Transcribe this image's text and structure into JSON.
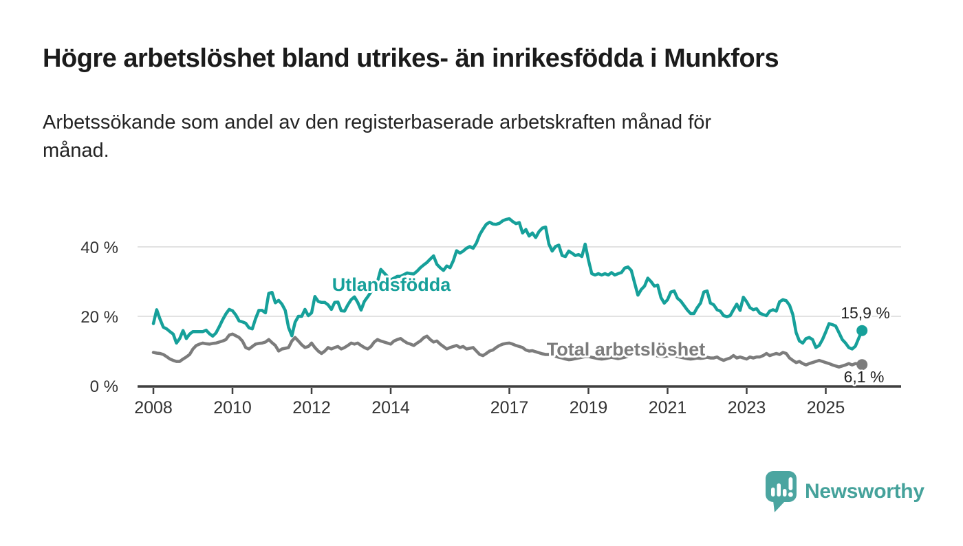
{
  "title": "Högre arbetslöshet bland utrikes- än inrikesfödda i Munkfors",
  "subtitle": "Arbetssökande som andel av den registerbaserade arbetskraften månad för\nmånad.",
  "branding": {
    "name": "Newsworthy",
    "icon": "speech-bubble-bar-chart",
    "color": "#45a29b"
  },
  "colors": {
    "foreign_born_line": "#16a09a",
    "total_line": "#7c7c7c",
    "axis": "#3f3f3f",
    "gridline": "#d9d9d9",
    "label_text": "#222222"
  },
  "chart_data": {
    "type": "line",
    "unit": "%",
    "frequency": "monthly",
    "x_start": "2008-01",
    "x_end": "2025-12",
    "ylim": [
      0,
      50
    ],
    "grid": "horizontal-only",
    "x_tick_labels": [
      "2008",
      "2010",
      "2012",
      "2014",
      "2017",
      "2019",
      "2021",
      "2023",
      "2025"
    ],
    "y_ticks": [
      {
        "value": 0,
        "label": "0 %"
      },
      {
        "value": 20,
        "label": "20 %"
      },
      {
        "value": 40,
        "label": "40 %"
      }
    ],
    "series": [
      {
        "name": "Utlandsfödda",
        "color": "#16a09a",
        "end_label": "15,9 %",
        "last_value": 15.9,
        "values": [
          17.9,
          21.9,
          19.2,
          16.9,
          16.4,
          15.6,
          14.9,
          12.3,
          13.6,
          15.9,
          13.6,
          14.9,
          15.6,
          15.6,
          15.6,
          15.6,
          16.0,
          15.0,
          14.3,
          15.2,
          17.0,
          19.0,
          20.7,
          22.0,
          21.6,
          20.4,
          18.7,
          18.4,
          18.0,
          16.7,
          16.4,
          19.3,
          21.7,
          21.7,
          21.0,
          26.6,
          26.9,
          23.9,
          24.6,
          23.5,
          21.7,
          16.8,
          14.4,
          18.3,
          20.0,
          20.0,
          22.0,
          20.2,
          21.0,
          25.7,
          24.3,
          24.0,
          24.0,
          23.3,
          22.0,
          24.0,
          24.1,
          21.6,
          21.5,
          23.3,
          24.8,
          25.6,
          24.0,
          21.8,
          24.3,
          25.6,
          27.0,
          28.5,
          30.0,
          33.5,
          32.5,
          31.5,
          30.5,
          31.0,
          31.5,
          31.5,
          32.0,
          32.5,
          32.3,
          32.2,
          33.0,
          34.0,
          34.8,
          35.5,
          36.5,
          37.4,
          35.0,
          34.0,
          33.2,
          34.5,
          34.0,
          36.0,
          38.9,
          38.2,
          38.8,
          39.6,
          40.1,
          39.6,
          41.1,
          43.5,
          45.1,
          46.5,
          47.1,
          46.6,
          46.5,
          46.8,
          47.5,
          47.9,
          48.1,
          47.3,
          46.7,
          47.0,
          44.0,
          45.0,
          43.1,
          44.0,
          42.7,
          44.4,
          45.4,
          45.7,
          40.8,
          38.8,
          40.1,
          40.5,
          37.5,
          37.2,
          38.8,
          38.2,
          37.5,
          37.8,
          37.2,
          40.8,
          36.2,
          32.3,
          31.9,
          32.3,
          31.9,
          32.3,
          31.9,
          32.6,
          31.9,
          32.3,
          32.6,
          33.9,
          34.2,
          33.2,
          29.6,
          26.1,
          27.7,
          28.7,
          31.0,
          30.0,
          28.7,
          29.0,
          25.4,
          23.8,
          24.8,
          27.0,
          27.3,
          25.2,
          24.4,
          23.1,
          21.8,
          20.8,
          20.8,
          22.5,
          23.8,
          27.0,
          27.3,
          23.8,
          23.3,
          21.9,
          21.5,
          20.2,
          19.9,
          20.2,
          21.9,
          23.5,
          21.7,
          25.5,
          24.2,
          22.5,
          21.9,
          22.2,
          20.9,
          20.5,
          20.2,
          21.5,
          21.9,
          21.5,
          24.2,
          24.8,
          24.5,
          23.2,
          20.5,
          15.3,
          12.9,
          12.3,
          13.6,
          13.9,
          13.3,
          11.0,
          11.6,
          13.3,
          15.5,
          17.9,
          17.6,
          17.2,
          15.3,
          13.3,
          12.3,
          11.0,
          10.6,
          11.4,
          13.7,
          15.9
        ]
      },
      {
        "name": "Total arbetslöshet",
        "color": "#7c7c7c",
        "end_label": "6,1 %",
        "last_value": 6.1,
        "values": [
          9.6,
          9.4,
          9.3,
          9.0,
          8.4,
          7.7,
          7.3,
          7.0,
          7.0,
          7.7,
          8.3,
          9.0,
          10.6,
          11.6,
          12.0,
          12.3,
          12.1,
          12.0,
          12.2,
          12.3,
          12.6,
          12.9,
          13.3,
          14.6,
          14.9,
          14.4,
          13.9,
          12.9,
          11.0,
          10.6,
          11.3,
          12.0,
          12.2,
          12.3,
          12.6,
          13.3,
          12.4,
          11.6,
          10.0,
          10.6,
          10.8,
          11.0,
          12.9,
          13.9,
          12.9,
          11.8,
          11.0,
          11.3,
          12.3,
          11.0,
          10.0,
          9.3,
          10.0,
          11.0,
          10.6,
          11.0,
          11.3,
          10.6,
          11.0,
          11.6,
          12.3,
          12.0,
          12.3,
          11.6,
          11.0,
          10.6,
          11.3,
          12.6,
          13.3,
          12.9,
          12.6,
          12.3,
          12.0,
          12.9,
          13.3,
          13.6,
          12.9,
          12.3,
          12.0,
          11.6,
          12.3,
          12.9,
          13.8,
          14.3,
          13.3,
          12.6,
          12.9,
          12.0,
          11.3,
          10.6,
          11.0,
          11.3,
          11.6,
          11.0,
          11.3,
          10.6,
          10.8,
          11.0,
          10.0,
          9.0,
          8.7,
          9.3,
          10.0,
          10.3,
          11.0,
          11.6,
          12.0,
          12.2,
          12.3,
          12.0,
          11.6,
          11.3,
          11.0,
          10.3,
          10.0,
          10.1,
          9.8,
          9.5,
          9.2,
          9.0,
          9.0,
          8.8,
          8.5,
          8.2,
          8.0,
          7.7,
          7.5,
          7.6,
          7.8,
          8.0,
          8.2,
          8.4,
          8.4,
          8.2,
          8.0,
          7.8,
          7.7,
          7.8,
          8.0,
          8.2,
          8.0,
          7.8,
          8.0,
          8.2,
          8.5,
          8.8,
          9.4,
          9.8,
          9.6,
          9.4,
          9.2,
          9.0,
          8.8,
          8.6,
          8.5,
          8.4,
          8.6,
          8.8,
          8.6,
          8.4,
          8.2,
          8.0,
          7.8,
          7.7,
          7.8,
          8.0,
          7.9,
          8.0,
          8.2,
          8.0,
          8.0,
          8.3,
          7.7,
          7.3,
          7.7,
          8.0,
          8.7,
          8.0,
          8.3,
          8.0,
          7.7,
          8.3,
          8.0,
          8.3,
          8.3,
          8.7,
          9.3,
          8.7,
          9.0,
          9.3,
          9.0,
          9.6,
          9.3,
          8.0,
          7.3,
          6.7,
          7.0,
          6.4,
          6.0,
          6.4,
          6.7,
          7.0,
          7.3,
          7.0,
          6.7,
          6.4,
          6.0,
          5.7,
          5.4,
          5.7,
          6.0,
          6.4,
          6.0,
          6.4,
          6.3,
          6.1
        ]
      }
    ]
  }
}
